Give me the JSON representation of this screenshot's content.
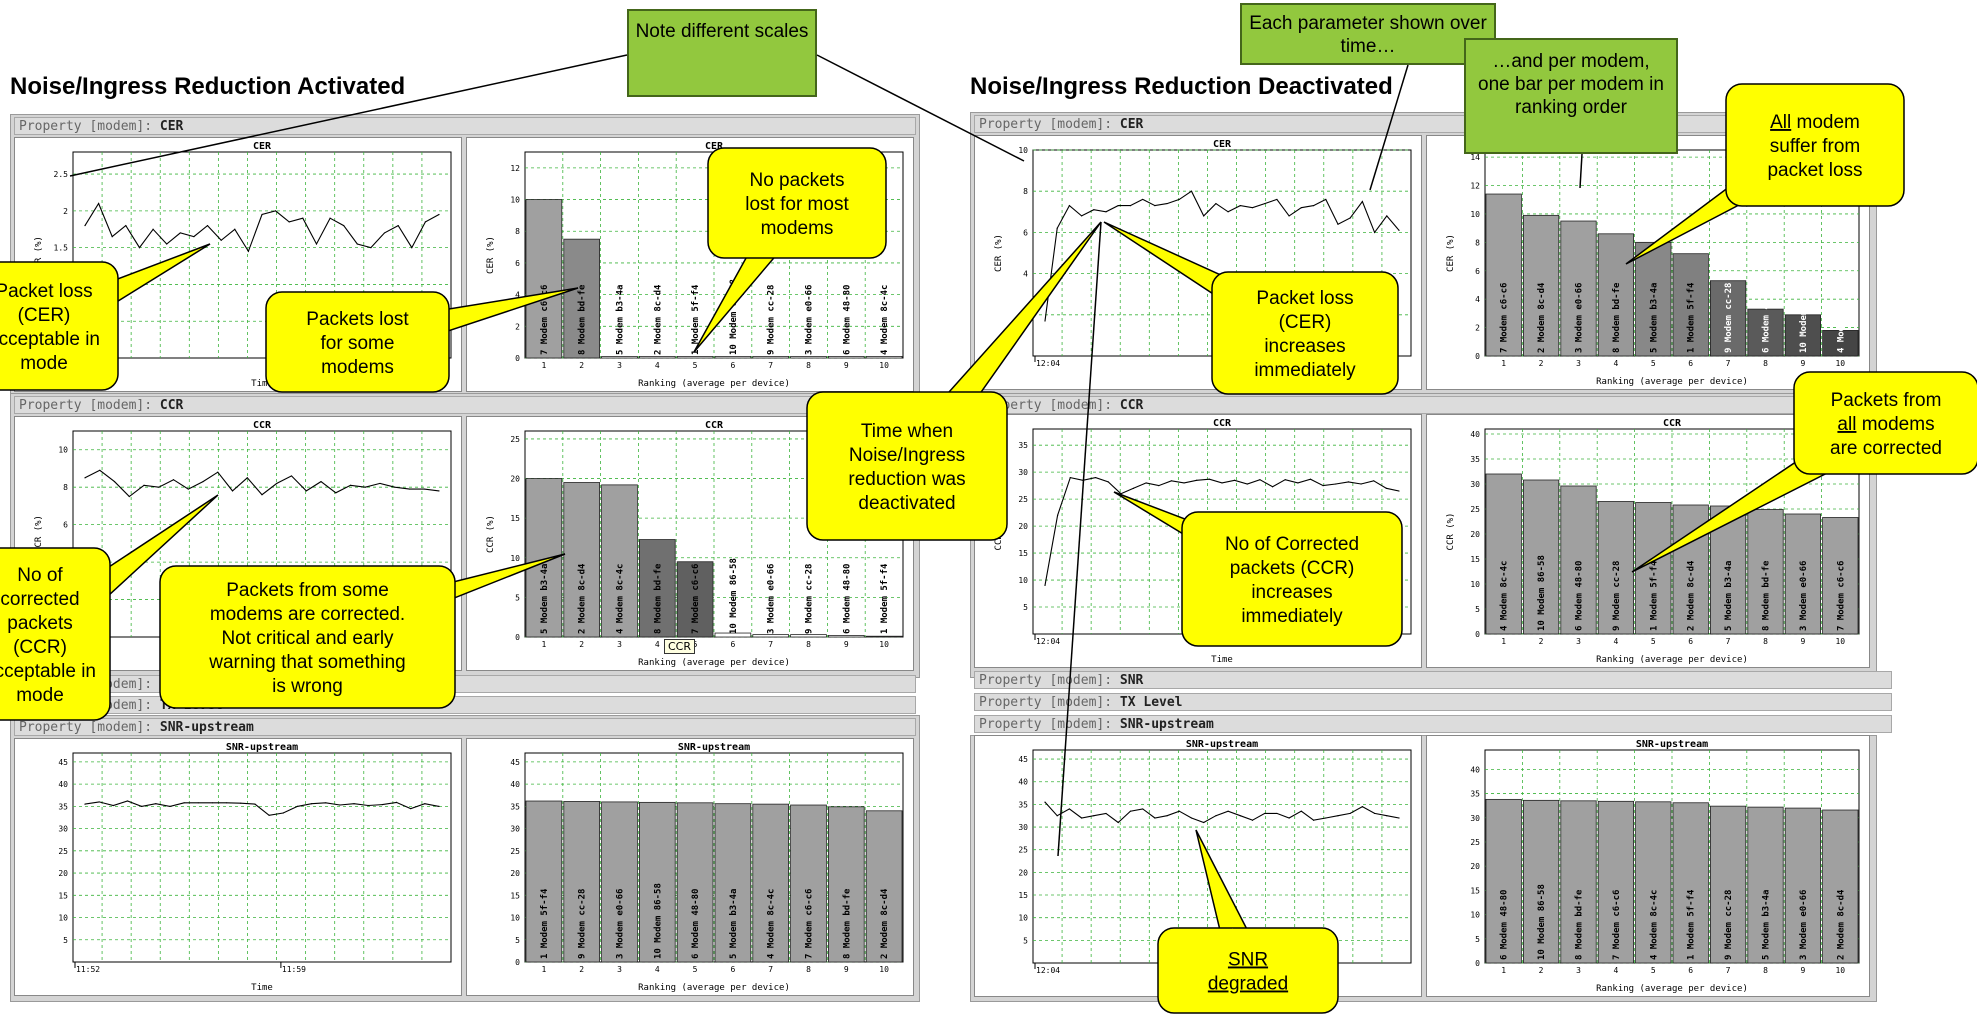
{
  "titles": {
    "left": "Noise/Ingress Reduction Activated",
    "right": "Noise/Ingress Reduction Deactivated"
  },
  "property_prefix": "Property [modem]:",
  "properties": {
    "cer": "CER",
    "ccr": "CCR",
    "snr": "SNR",
    "tx": "TX Level",
    "snr_up": "SNR-upstream"
  },
  "notes": {
    "different_scales": "Note different scales",
    "each_param": "Each parameter shown over time…",
    "per_modem": "…and per modem, one bar per modem in ranking order"
  },
  "tooltip": "CCR",
  "callouts": [
    {
      "id": "packet-loss-acceptable",
      "lines": [
        "Packet loss",
        "(CER)",
        "acceptable in",
        "mode"
      ],
      "fill": "#ffff00"
    },
    {
      "id": "packets-lost-some",
      "lines": [
        "Packets lost",
        "for some",
        "modems"
      ],
      "fill": "#ffff00"
    },
    {
      "id": "no-packets-lost",
      "lines": [
        "No packets",
        "lost for most",
        "modems"
      ],
      "fill": "#ffff00"
    },
    {
      "id": "ccr-acceptable",
      "lines": [
        "No of",
        "corrected",
        "packets",
        "(CCR)",
        "acceptable in",
        "mode"
      ],
      "fill": "#ffff00"
    },
    {
      "id": "packets-corrected-some",
      "lines": [
        "Packets from some",
        "modems are corrected.",
        "Not critical and early",
        "warning that something",
        "is wrong"
      ],
      "fill": "#ffff00"
    },
    {
      "id": "time-deactivated",
      "lines": [
        "Time when",
        "Noise/Ingress",
        "reduction was",
        "deactivated"
      ],
      "fill": "#ffff00"
    },
    {
      "id": "packet-loss-increases",
      "lines": [
        "Packet loss",
        "(CER)",
        "increases",
        "immediately"
      ],
      "fill": "#ffff00"
    },
    {
      "id": "ccr-increases",
      "lines": [
        "No of Corrected",
        "packets (CCR)",
        "increases",
        "immediately"
      ],
      "fill": "#ffff00"
    },
    {
      "id": "all-modem-loss",
      "lines": [
        "All modem",
        "suffer from",
        "packet loss"
      ],
      "underline_first_word": true,
      "fill": "#ffff00"
    },
    {
      "id": "packets-all-corrected",
      "lines": [
        "Packets from",
        "all modems",
        "are corrected"
      ],
      "underline_word": "all",
      "fill": "#ffff00"
    },
    {
      "id": "snr-degraded",
      "lines": [
        "SNR",
        "degraded"
      ],
      "underline_all": true,
      "fill": "#ffff00"
    }
  ],
  "chart_data": [
    {
      "id": "left-cer-time",
      "type": "line",
      "title": "CER",
      "xlabel": "Time",
      "ylabel": "CER (%)",
      "ylim": [
        0,
        2.8
      ],
      "yticks": [
        0.5,
        1,
        1.5,
        2,
        2.5
      ],
      "xtick_labels": [],
      "values": [
        1.8,
        2.1,
        1.65,
        1.8,
        1.5,
        1.75,
        1.55,
        1.7,
        1.65,
        1.8,
        1.6,
        1.75,
        1.45,
        1.95,
        2.0,
        1.85,
        1.9,
        1.55,
        1.9,
        1.8,
        1.55,
        1.5,
        1.7,
        1.8,
        1.5,
        1.85,
        1.95
      ]
    },
    {
      "id": "left-cer-rank",
      "type": "bar",
      "title": "CER",
      "xlabel": "Ranking (average per device)",
      "ylabel": "CER (%)",
      "ylim": [
        0,
        13
      ],
      "yticks": [
        0,
        2,
        4,
        6,
        8,
        10,
        12
      ],
      "categories": [
        "1",
        "2",
        "3",
        "4",
        "5",
        "6",
        "7",
        "8",
        "9",
        "10"
      ],
      "values": [
        10,
        7.5,
        0.1,
        0.1,
        0.1,
        0.1,
        0.1,
        0.1,
        0.1,
        0.1
      ],
      "bar_labels": [
        "7 Modem c6-c6",
        "8 Modem bd-fe",
        "5 Modem b3-4a",
        "2 Modem 8c-d4",
        "1 Modem 5f-f4",
        "10 Modem 86-58",
        "9 Modem cc-28",
        "3 Modem e0-66",
        "6 Modem 48-80",
        "4 Modem 8c-4c"
      ],
      "bar_colors": [
        "#a0a0a0",
        "#8a8a8a",
        "#ffffff",
        "#ffffff",
        "#ffffff",
        "#ffffff",
        "#ffffff",
        "#ffffff",
        "#ffffff",
        "#ffffff"
      ]
    },
    {
      "id": "left-ccr-time",
      "type": "line",
      "title": "CCR",
      "xlabel": "",
      "ylabel": "CCR (%)",
      "ylim": [
        0,
        11
      ],
      "yticks": [
        2,
        4,
        6,
        8,
        10
      ],
      "xtick_labels": [
        "11:52"
      ],
      "values": [
        8.5,
        8.9,
        8.3,
        7.5,
        8.1,
        8.0,
        8.4,
        7.9,
        8.3,
        8.8,
        7.8,
        8.5,
        7.6,
        8.2,
        8.6,
        7.8,
        8.3,
        7.7,
        8.1,
        8.0,
        8.2,
        8.0,
        7.9,
        7.9,
        7.8
      ]
    },
    {
      "id": "left-ccr-rank",
      "type": "bar",
      "title": "CCR",
      "xlabel": "Ranking (average per device)",
      "ylabel": "CCR (%)",
      "ylim": [
        0,
        26
      ],
      "yticks": [
        0,
        5,
        10,
        15,
        20,
        25
      ],
      "categories": [
        "1",
        "2",
        "3",
        "4",
        "5",
        "6",
        "7",
        "8",
        "9",
        "10"
      ],
      "values": [
        20,
        19.5,
        19.2,
        12.3,
        9.5,
        0.5,
        0.3,
        0.3,
        0.2,
        0.1
      ],
      "bar_labels": [
        "5 Modem b3-4a",
        "2 Modem 8c-d4",
        "4 Modem 8c-4c",
        "8 Modem bd-fe",
        "7 Modem c6-c6",
        "10 Modem 86-58",
        "3 Modem e0-66",
        "9 Modem cc-28",
        "6 Modem 48-80",
        "1 Modem 5f-f4"
      ],
      "bar_colors": [
        "#a0a0a0",
        "#a0a0a0",
        "#a0a0a0",
        "#707070",
        "#606060",
        "#ffffff",
        "#ffffff",
        "#ffffff",
        "#ffffff",
        "#ffffff"
      ]
    },
    {
      "id": "left-snr-time",
      "type": "line",
      "title": "SNR-upstream",
      "xlabel": "Time",
      "ylabel": "",
      "ylim": [
        0,
        47
      ],
      "yticks": [
        5,
        10,
        15,
        20,
        25,
        30,
        35,
        40,
        45
      ],
      "xtick_labels": [
        "11:52",
        "11:59"
      ],
      "values": [
        35.5,
        36,
        35.2,
        36.2,
        35.0,
        35.6,
        35.0,
        35.8,
        35.8,
        35.8,
        35.8,
        35.7,
        35.5,
        33,
        33.5,
        35,
        35.6,
        35.8,
        35.3,
        35.6,
        35.2,
        35.4,
        35.9,
        34.5,
        35.6,
        35
      ]
    },
    {
      "id": "left-snr-rank",
      "type": "bar",
      "title": "SNR-upstream",
      "xlabel": "Ranking (average per device)",
      "ylabel": "",
      "ylim": [
        0,
        47
      ],
      "yticks": [
        0,
        5,
        10,
        15,
        20,
        25,
        30,
        35,
        40,
        45
      ],
      "categories": [
        "1",
        "2",
        "3",
        "4",
        "5",
        "6",
        "7",
        "8",
        "9",
        "10"
      ],
      "values": [
        36.2,
        36.1,
        36.0,
        35.9,
        35.8,
        35.6,
        35.5,
        35.3,
        34.9,
        34.0
      ],
      "bar_labels": [
        "1 Modem 5f-f4",
        "9 Modem cc-28",
        "3 Modem e0-66",
        "10 Modem 86-58",
        "6 Modem 48-80",
        "5 Modem b3-4a",
        "4 Modem 8c-4c",
        "7 Modem c6-c6",
        "8 Modem bd-fe",
        "2 Modem 8c-d4"
      ],
      "bar_colors": [
        "#a0a0a0",
        "#a0a0a0",
        "#a0a0a0",
        "#a0a0a0",
        "#a0a0a0",
        "#a0a0a0",
        "#a0a0a0",
        "#a0a0a0",
        "#a0a0a0",
        "#a0a0a0"
      ]
    },
    {
      "id": "right-cer-time",
      "type": "line",
      "title": "CER",
      "xlabel": "",
      "ylabel": "CER (%)",
      "ylim": [
        0,
        10
      ],
      "yticks": [
        2,
        4,
        6,
        8,
        10
      ],
      "xtick_labels": [
        "12:04"
      ],
      "values": [
        1.7,
        6.2,
        7.3,
        6.8,
        7.1,
        7.0,
        7.3,
        7.3,
        7.6,
        7.3,
        7.4,
        7.6,
        8.0,
        6.8,
        7.4,
        7.0,
        7.3,
        7.2,
        7.4,
        7.6,
        6.8,
        7.2,
        7.3,
        7.6,
        6.4,
        6.7,
        7.5,
        6.0,
        6.8,
        6.1
      ]
    },
    {
      "id": "right-cer-rank",
      "type": "bar",
      "title": "",
      "xlabel": "Ranking (average per device)",
      "ylabel": "CER (%)",
      "ylim": [
        0,
        14.5
      ],
      "yticks": [
        0,
        2,
        4,
        6,
        8,
        10,
        12,
        14
      ],
      "categories": [
        "1",
        "2",
        "3",
        "4",
        "5",
        "6",
        "7",
        "8",
        "9",
        "10"
      ],
      "values": [
        11.4,
        9.9,
        9.5,
        8.6,
        8.0,
        7.2,
        5.3,
        3.3,
        2.9,
        1.8
      ],
      "bar_labels": [
        "7 Modem c6-c6",
        "2 Modem 8c-d4",
        "3 Modem e0-66",
        "8 Modem bd-fe",
        "5 Modem b3-4a",
        "1 Modem 5f-f4",
        "9 Modem cc-28",
        "6 Modem 48-80",
        "10 Modem 86-58",
        "4 Modem 8c-4c"
      ],
      "bar_colors": [
        "#a0a0a0",
        "#a0a0a0",
        "#a0a0a0",
        "#989898",
        "#888888",
        "#808080",
        "#6a6a6a",
        "#5a5a5a",
        "#4e4e4e",
        "#454545"
      ]
    },
    {
      "id": "right-ccr-time",
      "type": "line",
      "title": "CCR",
      "xlabel": "Time",
      "ylabel": "CCR (%)",
      "ylim": [
        0,
        38
      ],
      "yticks": [
        5,
        10,
        15,
        20,
        25,
        30,
        35
      ],
      "xtick_labels": [
        "12:04"
      ],
      "values": [
        9,
        22,
        29,
        28.5,
        29,
        28.2,
        26,
        27,
        28,
        27.5,
        28.4,
        28,
        28.5,
        28.7,
        28,
        28.5,
        27.8,
        28.6,
        27.3,
        28.6,
        28,
        28.7,
        27.5,
        27.8,
        28.2,
        27.8,
        28.4,
        27,
        26.5
      ]
    },
    {
      "id": "right-ccr-rank",
      "type": "bar",
      "title": "CCR",
      "xlabel": "Ranking (average per device)",
      "ylabel": "CCR (%)",
      "ylim": [
        0,
        41
      ],
      "yticks": [
        0,
        5,
        10,
        15,
        20,
        25,
        30,
        35,
        40
      ],
      "categories": [
        "1",
        "2",
        "3",
        "4",
        "5",
        "6",
        "7",
        "8",
        "9",
        "10"
      ],
      "values": [
        32,
        30.8,
        29.6,
        26.5,
        26.3,
        25.8,
        25.6,
        24.9,
        24.0,
        23.3
      ],
      "bar_labels": [
        "4 Modem 8c-4c",
        "10 Modem 86-58",
        "6 Modem 48-80",
        "9 Modem cc-28",
        "1 Modem 5f-f4",
        "2 Modem 8c-d4",
        "5 Modem b3-4a",
        "8 Modem bd-fe",
        "3 Modem e0-66",
        "7 Modem c6-c6"
      ],
      "bar_colors": [
        "#a0a0a0",
        "#a0a0a0",
        "#a0a0a0",
        "#a0a0a0",
        "#a0a0a0",
        "#a0a0a0",
        "#a0a0a0",
        "#a0a0a0",
        "#a0a0a0",
        "#a0a0a0"
      ]
    },
    {
      "id": "right-snr-time",
      "type": "line",
      "title": "SNR-upstream",
      "xlabel": "",
      "ylabel": "",
      "ylim": [
        0,
        47
      ],
      "yticks": [
        5,
        10,
        15,
        20,
        25,
        30,
        35,
        40,
        45
      ],
      "xtick_labels": [
        "12:04"
      ],
      "values": [
        35.5,
        32.5,
        34,
        32,
        32.5,
        33,
        31,
        33.5,
        34,
        32,
        32.5,
        33.5,
        32,
        31,
        32.5,
        33.5,
        32.5,
        31.5,
        33,
        33,
        32,
        33.5,
        31.5,
        32,
        32.5,
        33,
        34.5,
        33,
        32.5,
        32
      ]
    },
    {
      "id": "right-snr-rank",
      "type": "bar",
      "title": "SNR-upstream",
      "xlabel": "Ranking (average per device)",
      "ylabel": "",
      "ylim": [
        0,
        44
      ],
      "yticks": [
        0,
        5,
        10,
        15,
        20,
        25,
        30,
        35,
        40
      ],
      "categories": [
        "1",
        "2",
        "3",
        "4",
        "5",
        "6",
        "7",
        "8",
        "9",
        "10"
      ],
      "values": [
        33.8,
        33.6,
        33.5,
        33.4,
        33.3,
        33.1,
        32.4,
        32.2,
        32.0,
        31.6
      ],
      "bar_labels": [
        "6 Modem 48-80",
        "10 Modem 86-58",
        "8 Modem bd-fe",
        "7 Modem c6-c6",
        "4 Modem 8c-4c",
        "1 Modem 5f-f4",
        "9 Modem cc-28",
        "5 Modem b3-4a",
        "3 Modem e0-66",
        "2 Modem 8c-d4"
      ],
      "bar_colors": [
        "#a0a0a0",
        "#a0a0a0",
        "#a0a0a0",
        "#a0a0a0",
        "#a0a0a0",
        "#a0a0a0",
        "#a0a0a0",
        "#a0a0a0",
        "#a0a0a0",
        "#a0a0a0"
      ]
    }
  ]
}
